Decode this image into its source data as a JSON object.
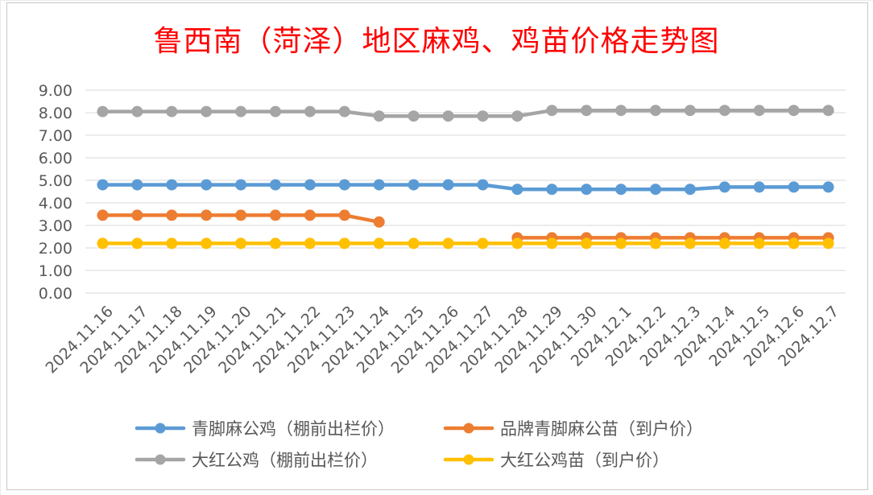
{
  "chart_data": {
    "type": "line",
    "title": "鲁西南（菏泽）地区麻鸡、鸡苗价格走势图",
    "xlabel": "",
    "ylabel": "",
    "ylim": [
      0,
      9
    ],
    "yticks": [
      "0.00",
      "1.00",
      "2.00",
      "3.00",
      "4.00",
      "5.00",
      "6.00",
      "7.00",
      "8.00",
      "9.00"
    ],
    "grid": "horizontal",
    "legend_position": "bottom",
    "categories": [
      "2024.11.16",
      "2024.11.17",
      "2024.11.18",
      "2024.11.19",
      "2024.11.20",
      "2024.11.21",
      "2024.11.22",
      "2024.11.23",
      "2024.11.24",
      "2024.11.25",
      "2024.11.26",
      "2024.11.27",
      "2024.11.28",
      "2024.11.29",
      "2024.11.30",
      "2024.12.1",
      "2024.12.2",
      "2024.12.3",
      "2024.12.4",
      "2024.12.5",
      "2024.12.6",
      "2024.12.7"
    ],
    "series": [
      {
        "name": "青脚麻公鸡（棚前出栏价）",
        "color": "#5b9bd5",
        "values": [
          4.8,
          4.8,
          4.8,
          4.8,
          4.8,
          4.8,
          4.8,
          4.8,
          4.8,
          4.8,
          4.8,
          4.8,
          4.6,
          4.6,
          4.6,
          4.6,
          4.6,
          4.6,
          4.7,
          4.7,
          4.7,
          4.7
        ]
      },
      {
        "name": "品牌青脚麻公苗（到户价）",
        "color": "#ed7d31",
        "values": [
          3.45,
          3.45,
          3.45,
          3.45,
          3.45,
          3.45,
          3.45,
          3.45,
          3.15,
          null,
          null,
          null,
          2.45,
          2.45,
          2.45,
          2.45,
          2.45,
          2.45,
          2.45,
          2.45,
          2.45,
          2.45
        ]
      },
      {
        "name": "大红公鸡（棚前出栏价）",
        "color": "#a5a5a5",
        "values": [
          8.05,
          8.05,
          8.05,
          8.05,
          8.05,
          8.05,
          8.05,
          8.05,
          7.85,
          7.85,
          7.85,
          7.85,
          7.85,
          8.1,
          8.1,
          8.1,
          8.1,
          8.1,
          8.1,
          8.1,
          8.1,
          8.1
        ]
      },
      {
        "name": "大红公鸡苗（到户价）",
        "color": "#ffc000",
        "values": [
          2.2,
          2.2,
          2.2,
          2.2,
          2.2,
          2.2,
          2.2,
          2.2,
          2.2,
          2.2,
          2.2,
          2.2,
          2.2,
          2.2,
          2.2,
          2.2,
          2.2,
          2.2,
          2.2,
          2.2,
          2.2,
          2.2
        ]
      }
    ]
  }
}
